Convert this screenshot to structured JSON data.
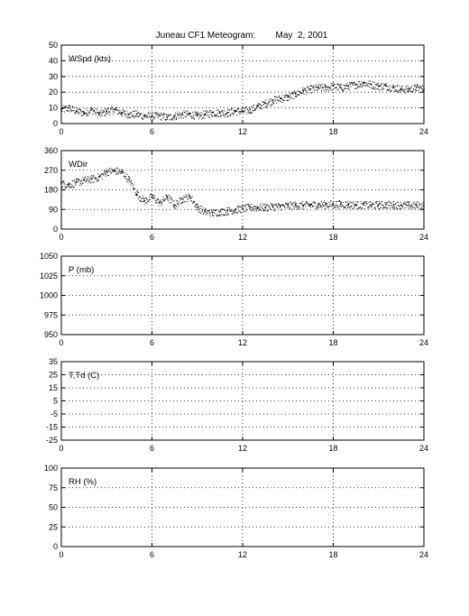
{
  "figure": {
    "title": "Juneau CF1 Meteogram:        May  2, 2001"
  },
  "chart_data": [
    {
      "type": "scatter",
      "label": "WSpd (kts)",
      "x_ticks": [
        0,
        6,
        12,
        18,
        24
      ],
      "y_ticks": [
        0,
        10,
        20,
        30,
        40,
        50
      ],
      "xlim": [
        0,
        24
      ],
      "ylim": [
        0,
        50
      ],
      "grid": true,
      "series": [
        {
          "x": [
            0.0,
            0.5,
            1.0,
            1.5,
            2.0,
            2.5,
            3.0,
            3.5,
            4.0,
            4.5,
            5.0,
            5.5,
            6.0,
            6.5,
            7.0,
            7.5,
            8.0,
            8.5,
            9.0,
            9.5,
            10.0,
            10.5,
            11.0,
            11.5,
            12.0,
            12.5,
            13.0,
            13.5,
            14.0,
            14.5,
            15.0,
            15.5,
            16.0,
            16.5,
            17.0,
            17.5,
            18.0,
            18.5,
            19.0,
            19.5,
            20.0,
            20.5,
            21.0,
            21.5,
            22.0,
            22.5,
            23.0,
            23.5,
            24.0
          ],
          "y": [
            9,
            10,
            8,
            7,
            9,
            6,
            8,
            9,
            7,
            6,
            6,
            5,
            5,
            5,
            4,
            5,
            6,
            6,
            5,
            6,
            7,
            7,
            7,
            8,
            8,
            9,
            11,
            13,
            15,
            16,
            17,
            19,
            21,
            22,
            23,
            23,
            24,
            23,
            24,
            25,
            26,
            25,
            24,
            24,
            23,
            22,
            22,
            23,
            22
          ]
        }
      ]
    },
    {
      "type": "scatter",
      "label": "WDir",
      "x_ticks": [
        0,
        6,
        12,
        18,
        24
      ],
      "y_ticks": [
        0,
        90,
        180,
        270,
        360
      ],
      "xlim": [
        0,
        24
      ],
      "ylim": [
        0,
        360
      ],
      "grid": true,
      "series": [
        {
          "x": [
            0.0,
            0.5,
            1.0,
            1.5,
            2.0,
            2.5,
            3.0,
            3.5,
            4.0,
            4.5,
            5.0,
            5.5,
            6.0,
            6.5,
            7.0,
            7.5,
            8.0,
            8.5,
            9.0,
            9.5,
            10.0,
            10.5,
            11.0,
            11.5,
            12.0,
            12.5,
            13.0,
            13.5,
            14.0,
            14.5,
            15.0,
            15.5,
            16.0,
            16.5,
            17.0,
            17.5,
            18.0,
            18.5,
            19.0,
            19.5,
            20.0,
            20.5,
            21.0,
            21.5,
            22.0,
            22.5,
            23.0,
            23.5,
            24.0
          ],
          "y": [
            210,
            205,
            215,
            225,
            230,
            240,
            265,
            268,
            262,
            225,
            160,
            130,
            150,
            120,
            150,
            110,
            140,
            150,
            100,
            80,
            75,
            80,
            85,
            90,
            95,
            100,
            100,
            100,
            105,
            105,
            108,
            110,
            110,
            112,
            112,
            114,
            115,
            115,
            114,
            112,
            112,
            110,
            112,
            113,
            112,
            111,
            110,
            110,
            108
          ]
        }
      ]
    },
    {
      "type": "scatter",
      "label": "P (mb)",
      "x_ticks": [
        0,
        6,
        12,
        18,
        24
      ],
      "y_ticks": [
        950,
        975,
        1000,
        1025,
        1050
      ],
      "xlim": [
        0,
        24
      ],
      "ylim": [
        950,
        1050
      ],
      "grid": true,
      "series": []
    },
    {
      "type": "scatter",
      "label": "T,Td (C)",
      "x_ticks": [
        0,
        6,
        12,
        18,
        24
      ],
      "y_ticks": [
        -25,
        -15,
        -5,
        5,
        15,
        25,
        35
      ],
      "xlim": [
        0,
        24
      ],
      "ylim": [
        -25,
        35
      ],
      "grid": true,
      "series": []
    },
    {
      "type": "scatter",
      "label": "RH (%)",
      "x_ticks": [
        0,
        6,
        12,
        18,
        24
      ],
      "y_ticks": [
        0,
        25,
        50,
        75,
        100
      ],
      "xlim": [
        0,
        24
      ],
      "ylim": [
        0,
        100
      ],
      "grid": true,
      "series": []
    }
  ]
}
